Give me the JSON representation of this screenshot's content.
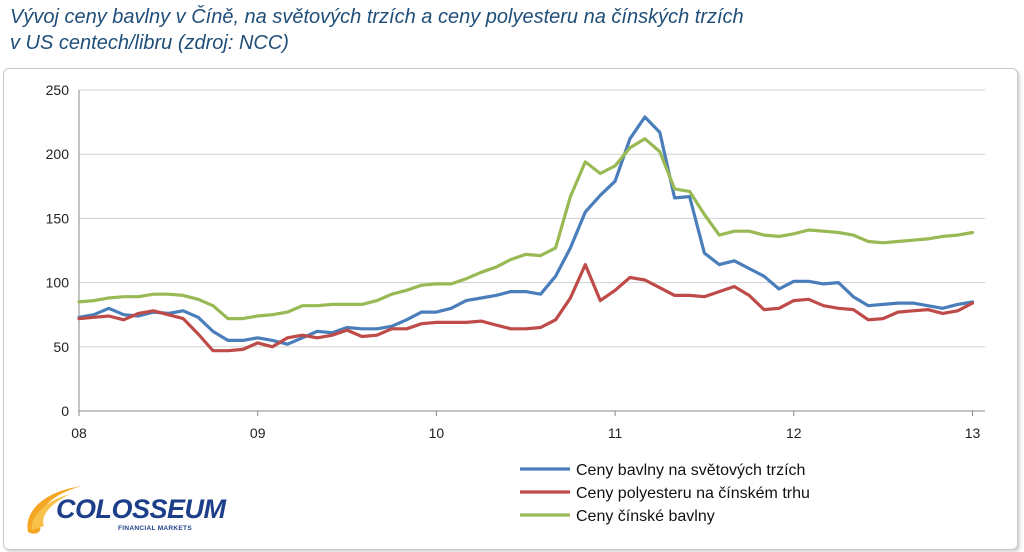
{
  "title": {
    "line1": "Vývoj ceny bavlny v Číně, na světových trzích a ceny polyesteru na čínských trzích",
    "line2": "v US centech/libru (zdroj: NCC)"
  },
  "logo": {
    "name": "COLOSSEUM",
    "subtitle": "FINANCIAL MARKETS"
  },
  "colors": {
    "world_cotton": "#4a7ebb",
    "polyester": "#be4b48",
    "china_cotton": "#98b954"
  },
  "chart_data": {
    "type": "line",
    "title": "Vývoj ceny bavlny v Číně, na světových trzích a ceny polyesteru na čínských trzích",
    "xlabel": "",
    "ylabel": "",
    "xlim": [
      2008.0,
      2013.07
    ],
    "ylim": [
      0,
      250
    ],
    "yticks": [
      0,
      50,
      100,
      150,
      200,
      250
    ],
    "xticks": [
      {
        "value": 2008,
        "label": "08"
      },
      {
        "value": 2009,
        "label": "09"
      },
      {
        "value": 2010,
        "label": "10"
      },
      {
        "value": 2011,
        "label": "11"
      },
      {
        "value": 2012,
        "label": "12"
      },
      {
        "value": 2013,
        "label": "13"
      }
    ],
    "grid": "horizontal",
    "legend": "bottom-right",
    "x": [
      2008.0,
      2008.083,
      2008.167,
      2008.25,
      2008.333,
      2008.417,
      2008.5,
      2008.583,
      2008.667,
      2008.75,
      2008.833,
      2008.917,
      2009.0,
      2009.083,
      2009.167,
      2009.25,
      2009.333,
      2009.417,
      2009.5,
      2009.583,
      2009.667,
      2009.75,
      2009.833,
      2009.917,
      2010.0,
      2010.083,
      2010.167,
      2010.25,
      2010.333,
      2010.417,
      2010.5,
      2010.583,
      2010.667,
      2010.75,
      2010.833,
      2010.917,
      2011.0,
      2011.083,
      2011.167,
      2011.25,
      2011.333,
      2011.417,
      2011.5,
      2011.583,
      2011.667,
      2011.75,
      2011.833,
      2011.917,
      2012.0,
      2012.083,
      2012.167,
      2012.25,
      2012.333,
      2012.417,
      2012.5,
      2012.583,
      2012.667,
      2012.75,
      2012.833,
      2012.917,
      2013.0
    ],
    "series": [
      {
        "name": "Ceny bavlny na světových trzích",
        "color": "#4a7ebb",
        "values": [
          73,
          75,
          80,
          75,
          74,
          77,
          76,
          78,
          73,
          62,
          55,
          55,
          57,
          55,
          52,
          57,
          62,
          61,
          65,
          64,
          64,
          66,
          71,
          77,
          77,
          80,
          86,
          88,
          90,
          93,
          93,
          91,
          105,
          127,
          155,
          168,
          179,
          212,
          229,
          217,
          166,
          167,
          123,
          114,
          117,
          111,
          105,
          95,
          101,
          101,
          99,
          100,
          89,
          82,
          83,
          84,
          84,
          82,
          80,
          83,
          85
        ]
      },
      {
        "name": "Ceny polyesteru na čínském trhu",
        "color": "#be4b48",
        "values": [
          72,
          73,
          74,
          71,
          76,
          78,
          75,
          72,
          60,
          47,
          47,
          48,
          53,
          50,
          57,
          59,
          57,
          59,
          63,
          58,
          59,
          64,
          64,
          68,
          69,
          69,
          69,
          70,
          67,
          64,
          64,
          65,
          71,
          88,
          114,
          86,
          94,
          104,
          102,
          96,
          90,
          90,
          89,
          93,
          97,
          90,
          79,
          80,
          86,
          87,
          82,
          80,
          79,
          71,
          72,
          77,
          78,
          79,
          76,
          78,
          84
        ]
      },
      {
        "name": "Ceny čínské bavlny",
        "color": "#98b954",
        "values": [
          85,
          86,
          88,
          89,
          89,
          91,
          91,
          90,
          87,
          82,
          72,
          72,
          74,
          75,
          77,
          82,
          82,
          83,
          83,
          83,
          86,
          91,
          94,
          98,
          99,
          99,
          103,
          108,
          112,
          118,
          122,
          121,
          127,
          167,
          194,
          185,
          191,
          205,
          212,
          202,
          173,
          171,
          153,
          137,
          140,
          140,
          137,
          136,
          138,
          141,
          140,
          139,
          137,
          132,
          131,
          132,
          133,
          134,
          136,
          137,
          139
        ]
      }
    ]
  }
}
